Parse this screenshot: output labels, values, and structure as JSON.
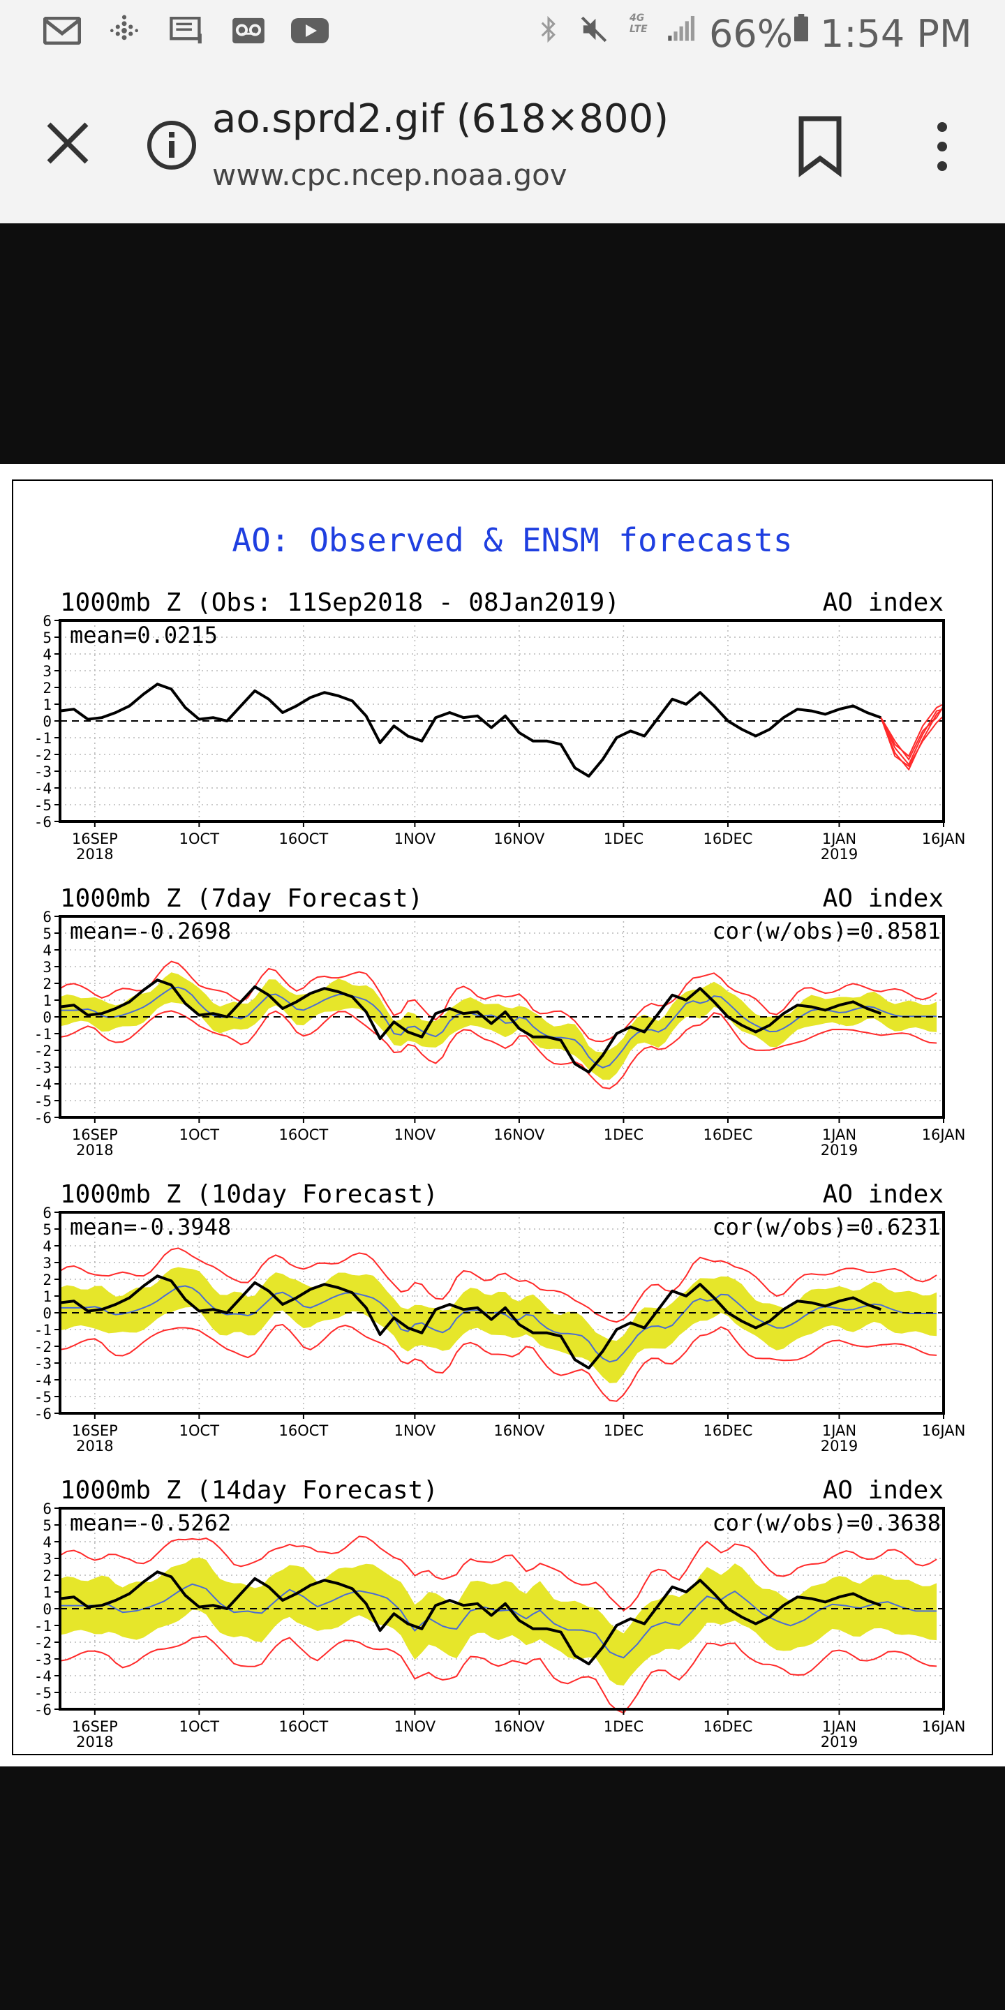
{
  "status_bar": {
    "battery_percent": "66%",
    "time": "1:54 PM",
    "network_label": "4G LTE",
    "icons": [
      "gmail-icon",
      "fitbit-icon",
      "message-icon",
      "voicemail-icon",
      "youtube-icon",
      "bluetooth-icon",
      "mute-icon",
      "network-icon",
      "signal-icon",
      "battery-icon"
    ]
  },
  "toolbar": {
    "title": "ao.sprd2.gif (618×800)",
    "url": "www.cpc.ncep.noaa.gov",
    "icons": [
      "close-icon",
      "info-icon",
      "bookmark-icon",
      "more-vert-icon"
    ]
  },
  "figure": {
    "title": "AO: Observed & ENSM forecasts",
    "title_color": "#1f3fe0",
    "colors": {
      "observed": "#000000",
      "members": "#ff2a2a",
      "spread": "#e6e62a",
      "ensemble_mean": "#4a6cd4"
    }
  },
  "chart_data": [
    {
      "type": "line",
      "title": "1000mb Z (Obs: 11Sep2018 - 08Jan2019)",
      "ylabel": "AO index",
      "stat_left": "mean=0.0215",
      "stat_right": "",
      "ylim": [
        -6,
        6
      ],
      "yticks": [
        "6",
        "5",
        "4",
        "3",
        "2",
        "1",
        "0",
        "-1",
        "-2",
        "-3",
        "-4",
        "-5",
        "-6"
      ],
      "xlim_days": [
        0,
        127
      ],
      "xticks": [
        {
          "day": 5,
          "label": "16SEP",
          "sub": "2018"
        },
        {
          "day": 20,
          "label": "1OCT",
          "sub": ""
        },
        {
          "day": 35,
          "label": "16OCT",
          "sub": ""
        },
        {
          "day": 51,
          "label": "1NOV",
          "sub": ""
        },
        {
          "day": 66,
          "label": "16NOV",
          "sub": ""
        },
        {
          "day": 81,
          "label": "1DEC",
          "sub": ""
        },
        {
          "day": 96,
          "label": "16DEC",
          "sub": ""
        },
        {
          "day": 112,
          "label": "1JAN",
          "sub": "2019"
        },
        {
          "day": 127,
          "label": "16JAN",
          "sub": ""
        }
      ],
      "grid": true,
      "zero_line": "dashed",
      "spread": null,
      "mean_line": null,
      "observed": {
        "x": [
          0,
          2,
          4,
          6,
          8,
          10,
          12,
          14,
          16,
          18,
          20,
          22,
          24,
          26,
          28,
          30,
          32,
          34,
          36,
          38,
          40,
          42,
          44,
          46,
          48,
          50,
          52,
          54,
          56,
          58,
          60,
          62,
          64,
          66,
          68,
          70,
          72,
          74,
          76,
          78,
          80,
          82,
          84,
          86,
          88,
          90,
          92,
          94,
          96,
          98,
          100,
          102,
          104,
          106,
          108,
          110,
          112,
          114,
          116,
          118
        ],
        "y": [
          0.6,
          0.7,
          0.1,
          0.2,
          0.5,
          0.9,
          1.6,
          2.2,
          1.9,
          0.8,
          0.1,
          0.2,
          0.0,
          0.9,
          1.8,
          1.3,
          0.5,
          0.9,
          1.4,
          1.7,
          1.5,
          1.2,
          0.3,
          -1.3,
          -0.3,
          -0.9,
          -1.2,
          0.2,
          0.5,
          0.2,
          0.3,
          -0.4,
          0.3,
          -0.7,
          -1.2,
          -1.2,
          -1.4,
          -2.8,
          -3.3,
          -2.3,
          -1.0,
          -0.6,
          -0.9,
          0.2,
          1.3,
          1.0,
          1.7,
          0.9,
          0.0,
          -0.5,
          -0.9,
          -0.5,
          0.2,
          0.7,
          0.6,
          0.4,
          0.7,
          0.9,
          0.5,
          0.2
        ]
      },
      "members_start": 118,
      "members": [
        {
          "x": [
            118,
            120,
            122,
            124,
            126,
            128
          ],
          "y": [
            0.2,
            -1.2,
            -2.3,
            -0.6,
            0.2,
            0.9
          ]
        },
        {
          "x": [
            118,
            120,
            122,
            124,
            126,
            128
          ],
          "y": [
            0.2,
            -1.6,
            -2.6,
            -0.8,
            0.6,
            0.7
          ]
        },
        {
          "x": [
            118,
            120,
            122,
            124,
            126,
            128
          ],
          "y": [
            0.2,
            -1.9,
            -2.9,
            -1.1,
            0.4,
            0.8
          ]
        },
        {
          "x": [
            118,
            120,
            122,
            124,
            126,
            128
          ],
          "y": [
            0.2,
            -1.4,
            -2.1,
            -0.3,
            0.8,
            1.0
          ]
        },
        {
          "x": [
            118,
            120,
            122,
            124,
            126,
            128
          ],
          "y": [
            0.2,
            -2.1,
            -2.7,
            -1.2,
            -0.1,
            0.3
          ]
        }
      ]
    },
    {
      "type": "line",
      "title": "1000mb Z (7day Forecast)",
      "ylabel": "AO index",
      "stat_left": "mean=-0.2698",
      "stat_right": "cor(w/obs)=0.8581",
      "ylim": [
        -6,
        6
      ],
      "yticks": [
        "6",
        "5",
        "4",
        "3",
        "2",
        "1",
        "0",
        "-1",
        "-2",
        "-3",
        "-4",
        "-5",
        "-6"
      ],
      "xlim_days": [
        0,
        127
      ],
      "xticks": [
        {
          "day": 5,
          "label": "16SEP",
          "sub": "2018"
        },
        {
          "day": 20,
          "label": "1OCT",
          "sub": ""
        },
        {
          "day": 35,
          "label": "16OCT",
          "sub": ""
        },
        {
          "day": 51,
          "label": "1NOV",
          "sub": ""
        },
        {
          "day": 66,
          "label": "16NOV",
          "sub": ""
        },
        {
          "day": 81,
          "label": "1DEC",
          "sub": ""
        },
        {
          "day": 96,
          "label": "16DEC",
          "sub": ""
        },
        {
          "day": 112,
          "label": "1JAN",
          "sub": "2019"
        },
        {
          "day": 127,
          "label": "16JAN",
          "sub": ""
        }
      ],
      "grid": true,
      "zero_line": "dashed",
      "spread": {
        "lead_days": 7,
        "half_width": 0.8,
        "member_half_width": 1.3
      },
      "mean_line": {
        "lead_days": 7
      },
      "observed": {
        "x": [
          0,
          2,
          4,
          6,
          8,
          10,
          12,
          14,
          16,
          18,
          20,
          22,
          24,
          26,
          28,
          30,
          32,
          34,
          36,
          38,
          40,
          42,
          44,
          46,
          48,
          50,
          52,
          54,
          56,
          58,
          60,
          62,
          64,
          66,
          68,
          70,
          72,
          74,
          76,
          78,
          80,
          82,
          84,
          86,
          88,
          90,
          92,
          94,
          96,
          98,
          100,
          102,
          104,
          106,
          108,
          110,
          112,
          114,
          116,
          118
        ],
        "y": [
          0.6,
          0.7,
          0.1,
          0.2,
          0.5,
          0.9,
          1.6,
          2.2,
          1.9,
          0.8,
          0.1,
          0.2,
          0.0,
          0.9,
          1.8,
          1.3,
          0.5,
          0.9,
          1.4,
          1.7,
          1.5,
          1.2,
          0.3,
          -1.3,
          -0.3,
          -0.9,
          -1.2,
          0.2,
          0.5,
          0.2,
          0.3,
          -0.4,
          0.3,
          -0.7,
          -1.2,
          -1.2,
          -1.4,
          -2.8,
          -3.3,
          -2.3,
          -1.0,
          -0.6,
          -0.9,
          0.2,
          1.3,
          1.0,
          1.7,
          0.9,
          0.0,
          -0.5,
          -0.9,
          -0.5,
          0.2,
          0.7,
          0.6,
          0.4,
          0.7,
          0.9,
          0.5,
          0.2
        ]
      },
      "members_start": null,
      "members": []
    },
    {
      "type": "line",
      "title": "1000mb Z (10day Forecast)",
      "ylabel": "AO index",
      "stat_left": "mean=-0.3948",
      "stat_right": "cor(w/obs)=0.6231",
      "ylim": [
        -6,
        6
      ],
      "yticks": [
        "6",
        "5",
        "4",
        "3",
        "2",
        "1",
        "0",
        "-1",
        "-2",
        "-3",
        "-4",
        "-5",
        "-6"
      ],
      "xlim_days": [
        0,
        127
      ],
      "xticks": [
        {
          "day": 5,
          "label": "16SEP",
          "sub": "2018"
        },
        {
          "day": 20,
          "label": "1OCT",
          "sub": ""
        },
        {
          "day": 35,
          "label": "16OCT",
          "sub": ""
        },
        {
          "day": 51,
          "label": "1NOV",
          "sub": ""
        },
        {
          "day": 66,
          "label": "16NOV",
          "sub": ""
        },
        {
          "day": 81,
          "label": "1DEC",
          "sub": ""
        },
        {
          "day": 96,
          "label": "16DEC",
          "sub": ""
        },
        {
          "day": 112,
          "label": "1JAN",
          "sub": "2019"
        },
        {
          "day": 127,
          "label": "16JAN",
          "sub": ""
        }
      ],
      "grid": true,
      "zero_line": "dashed",
      "spread": {
        "lead_days": 10,
        "half_width": 1.2,
        "member_half_width": 2.2
      },
      "mean_line": {
        "lead_days": 10
      },
      "observed": {
        "x": [
          0,
          2,
          4,
          6,
          8,
          10,
          12,
          14,
          16,
          18,
          20,
          22,
          24,
          26,
          28,
          30,
          32,
          34,
          36,
          38,
          40,
          42,
          44,
          46,
          48,
          50,
          52,
          54,
          56,
          58,
          60,
          62,
          64,
          66,
          68,
          70,
          72,
          74,
          76,
          78,
          80,
          82,
          84,
          86,
          88,
          90,
          92,
          94,
          96,
          98,
          100,
          102,
          104,
          106,
          108,
          110,
          112,
          114,
          116,
          118
        ],
        "y": [
          0.6,
          0.7,
          0.1,
          0.2,
          0.5,
          0.9,
          1.6,
          2.2,
          1.9,
          0.8,
          0.1,
          0.2,
          0.0,
          0.9,
          1.8,
          1.3,
          0.5,
          0.9,
          1.4,
          1.7,
          1.5,
          1.2,
          0.3,
          -1.3,
          -0.3,
          -0.9,
          -1.2,
          0.2,
          0.5,
          0.2,
          0.3,
          -0.4,
          0.3,
          -0.7,
          -1.2,
          -1.2,
          -1.4,
          -2.8,
          -3.3,
          -2.3,
          -1.0,
          -0.6,
          -0.9,
          0.2,
          1.3,
          1.0,
          1.7,
          0.9,
          0.0,
          -0.5,
          -0.9,
          -0.5,
          0.2,
          0.7,
          0.6,
          0.4,
          0.7,
          0.9,
          0.5,
          0.2
        ]
      },
      "members_start": null,
      "members": []
    },
    {
      "type": "line",
      "title": "1000mb Z (14day Forecast)",
      "ylabel": "AO index",
      "stat_left": "mean=-0.5262",
      "stat_right": "cor(w/obs)=0.3638",
      "ylim": [
        -6,
        6
      ],
      "yticks": [
        "6",
        "5",
        "4",
        "3",
        "2",
        "1",
        "0",
        "-1",
        "-2",
        "-3",
        "-4",
        "-5",
        "-6"
      ],
      "xlim_days": [
        0,
        127
      ],
      "xticks": [
        {
          "day": 5,
          "label": "16SEP",
          "sub": "2018"
        },
        {
          "day": 20,
          "label": "1OCT",
          "sub": ""
        },
        {
          "day": 35,
          "label": "16OCT",
          "sub": ""
        },
        {
          "day": 51,
          "label": "1NOV",
          "sub": ""
        },
        {
          "day": 66,
          "label": "16NOV",
          "sub": ""
        },
        {
          "day": 81,
          "label": "1DEC",
          "sub": ""
        },
        {
          "day": 96,
          "label": "16DEC",
          "sub": ""
        },
        {
          "day": 112,
          "label": "1JAN",
          "sub": "2019"
        },
        {
          "day": 127,
          "label": "16JAN",
          "sub": ""
        }
      ],
      "grid": true,
      "zero_line": "dashed",
      "spread": {
        "lead_days": 14,
        "half_width": 1.6,
        "member_half_width": 3.0
      },
      "mean_line": {
        "lead_days": 14
      },
      "observed": {
        "x": [
          0,
          2,
          4,
          6,
          8,
          10,
          12,
          14,
          16,
          18,
          20,
          22,
          24,
          26,
          28,
          30,
          32,
          34,
          36,
          38,
          40,
          42,
          44,
          46,
          48,
          50,
          52,
          54,
          56,
          58,
          60,
          62,
          64,
          66,
          68,
          70,
          72,
          74,
          76,
          78,
          80,
          82,
          84,
          86,
          88,
          90,
          92,
          94,
          96,
          98,
          100,
          102,
          104,
          106,
          108,
          110,
          112,
          114,
          116,
          118
        ],
        "y": [
          0.6,
          0.7,
          0.1,
          0.2,
          0.5,
          0.9,
          1.6,
          2.2,
          1.9,
          0.8,
          0.1,
          0.2,
          0.0,
          0.9,
          1.8,
          1.3,
          0.5,
          0.9,
          1.4,
          1.7,
          1.5,
          1.2,
          0.3,
          -1.3,
          -0.3,
          -0.9,
          -1.2,
          0.2,
          0.5,
          0.2,
          0.3,
          -0.4,
          0.3,
          -0.7,
          -1.2,
          -1.2,
          -1.4,
          -2.8,
          -3.3,
          -2.3,
          -1.0,
          -0.6,
          -0.9,
          0.2,
          1.3,
          1.0,
          1.7,
          0.9,
          0.0,
          -0.5,
          -0.9,
          -0.5,
          0.2,
          0.7,
          0.6,
          0.4,
          0.7,
          0.9,
          0.5,
          0.2
        ]
      },
      "members_start": null,
      "members": []
    }
  ]
}
